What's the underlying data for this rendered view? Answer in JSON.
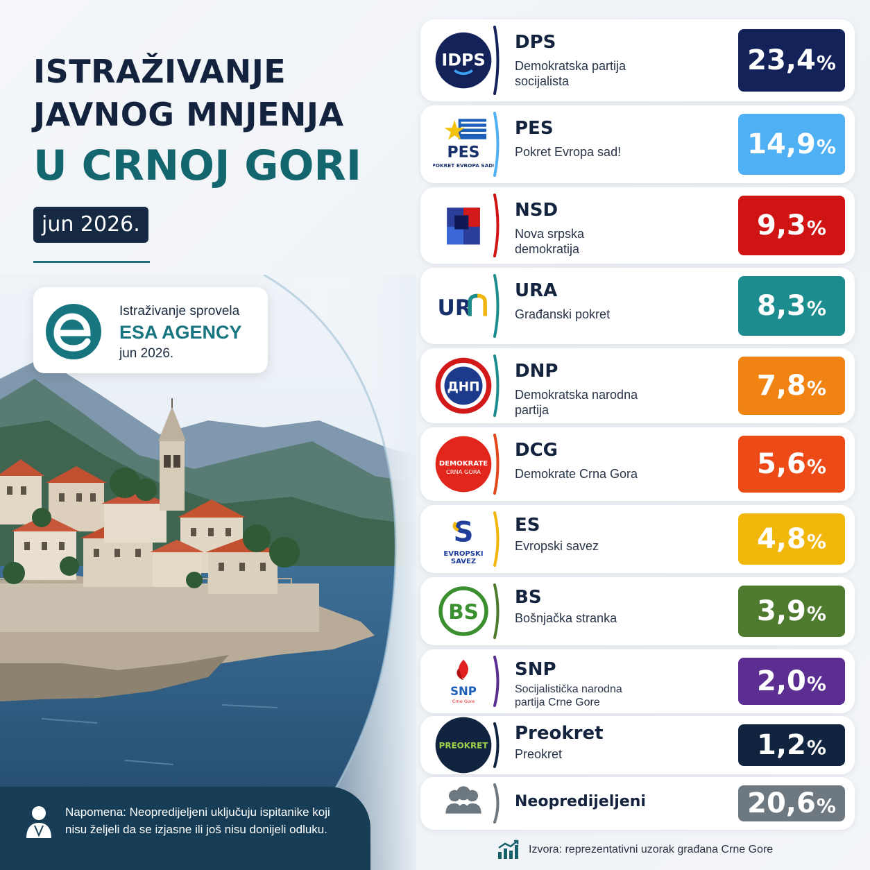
{
  "header": {
    "title_line1": "ISTRAŽIVANJE",
    "title_line2": "JAVNOG MNJENJA",
    "title_line3": "U CRNOJ GORI",
    "date": "jun 2026."
  },
  "agency": {
    "caption": "Istraživanje sprovela",
    "name": "ESA AGENCY",
    "date": "jun 2026."
  },
  "note": {
    "text": "Napomena: Neopredijeljeni uključuju ispitanike koji nisu željeli da se izjasne ili još nisu donijeli odluku."
  },
  "source": {
    "text": "Izvora: reprezentativni uzorak građana Crne Gore"
  },
  "chart_data": {
    "type": "table",
    "unit": "%",
    "rows": [
      {
        "name": "DPS",
        "full": "Demokratska partija socijalista",
        "value": "23,4",
        "color": "#14225a",
        "accent": "#14225a",
        "logo": "IDPS"
      },
      {
        "name": "PES",
        "full": "Pokret Evropa sad!",
        "value": "14,9",
        "color": "#4fb1f3",
        "accent": "#4fb1f3",
        "logo": "PES",
        "logo_sub": "POKRET EVROPA SAD!"
      },
      {
        "name": "NSD",
        "full": "Nova srpska demokratija",
        "value": "9,3",
        "color": "#d01414",
        "accent": "#d01414",
        "logo": ""
      },
      {
        "name": "URA",
        "full": "Građanski pokret",
        "value": "8,3",
        "color": "#1c8c8e",
        "accent": "#1c8c8e",
        "logo": "URA"
      },
      {
        "name": "DNP",
        "full": "Demokratska narodna partija",
        "value": "7,8",
        "color": "#f08312",
        "accent": "#1c8c8e",
        "logo": "ДНП"
      },
      {
        "name": "DCG",
        "full": "Demokrate Crna Gora",
        "value": "5,6",
        "color": "#ec4b18",
        "accent": "#e3471c",
        "logo": "DEMOKRATE",
        "logo_sub": "CRNA GORA"
      },
      {
        "name": "ES",
        "full": "Evropski savez",
        "value": "4,8",
        "color": "#f2b70b",
        "accent": "#f2b70b",
        "logo": "S",
        "logo_sub": "EVROPSKI SAVEZ"
      },
      {
        "name": "BS",
        "full": "Bošnjačka stranka",
        "value": "3,9",
        "color": "#4e7b2e",
        "accent": "#4e7b2e",
        "logo": "BS"
      },
      {
        "name": "SNP",
        "full": "Socijalistička narodna partija Crne Gore",
        "value": "2,0",
        "color": "#5c2e92",
        "accent": "#5c2e92",
        "logo": "SNP",
        "logo_sub": "Crne Gore"
      },
      {
        "name": "Preokret",
        "full": "Preokret",
        "value": "1,2",
        "color": "#10233f",
        "accent": "#10233f",
        "logo": "PREOKRET"
      },
      {
        "name": "Neopredijeljeni",
        "full": "",
        "value": "20,6",
        "color": "#6d7880",
        "accent": "#6d7880",
        "logo": "people-icon"
      }
    ]
  }
}
